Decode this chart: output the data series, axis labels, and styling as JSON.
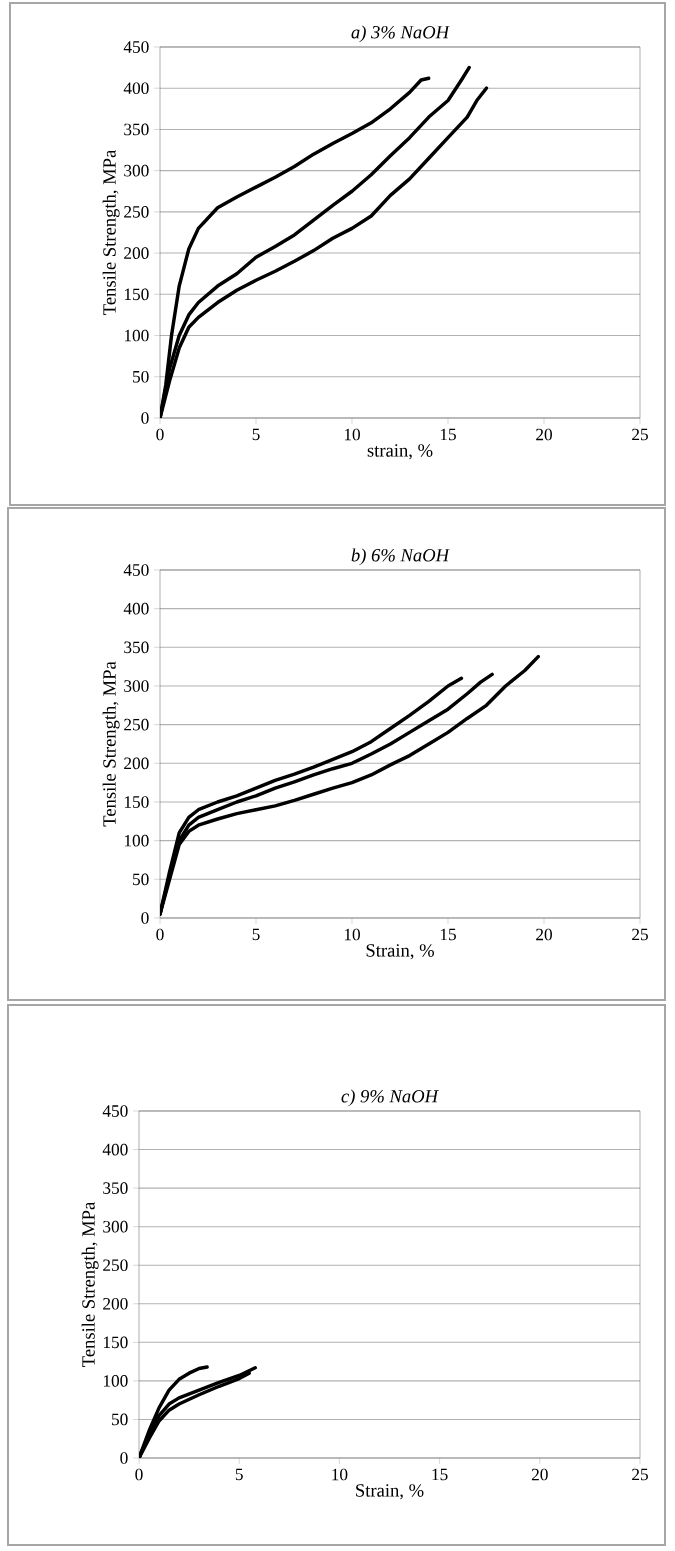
{
  "chart_data": [
    {
      "type": "line",
      "title": "a) 3% NaOH",
      "xlabel": "strain, %",
      "ylabel": "Tensile Strength, MPa",
      "xlim": [
        0,
        25
      ],
      "ylim": [
        0,
        450
      ],
      "xticks": [
        0,
        5,
        10,
        15,
        20,
        25
      ],
      "yticks": [
        0,
        50,
        100,
        150,
        200,
        250,
        300,
        350,
        400,
        450
      ],
      "grid": "y",
      "marker": "none",
      "line_style": "solid",
      "series": [
        {
          "color": "#000000",
          "x": [
            0,
            0.3,
            0.6,
            1,
            1.5,
            2,
            3,
            4,
            5,
            6,
            7,
            8,
            9,
            10,
            11,
            12,
            13,
            13.6,
            14
          ],
          "values": [
            0,
            40,
            100,
            160,
            205,
            230,
            255,
            268,
            280,
            292,
            305,
            320,
            333,
            345,
            358,
            375,
            395,
            410,
            412
          ]
        },
        {
          "color": "#000000",
          "x": [
            0,
            0.5,
            1,
            1.5,
            2,
            3,
            4,
            5,
            6,
            7,
            8,
            9,
            10,
            11,
            12,
            13,
            14,
            15,
            15.7,
            16.1
          ],
          "values": [
            0,
            60,
            100,
            125,
            140,
            160,
            175,
            195,
            208,
            222,
            240,
            258,
            275,
            295,
            318,
            340,
            365,
            385,
            410,
            425
          ]
        },
        {
          "color": "#000000",
          "x": [
            0,
            0.5,
            1,
            1.5,
            2,
            3,
            4,
            5,
            6,
            7,
            8,
            9,
            10,
            11,
            12,
            13,
            14,
            15,
            16,
            16.5,
            17
          ],
          "values": [
            0,
            45,
            85,
            110,
            122,
            140,
            155,
            167,
            178,
            190,
            203,
            218,
            230,
            245,
            270,
            290,
            315,
            340,
            365,
            385,
            400
          ]
        }
      ]
    },
    {
      "type": "line",
      "title": "b) 6% NaOH",
      "xlabel": "Strain, %",
      "ylabel": "Tensile Strength, MPa",
      "xlim": [
        0,
        25
      ],
      "ylim": [
        0,
        450
      ],
      "xticks": [
        0,
        5,
        10,
        15,
        20,
        25
      ],
      "yticks": [
        0,
        50,
        100,
        150,
        200,
        250,
        300,
        350,
        400,
        450
      ],
      "grid": "y",
      "marker": "none",
      "line_style": "solid",
      "series": [
        {
          "color": "#000000",
          "x": [
            0,
            0.5,
            1,
            1.5,
            2,
            3,
            4,
            5,
            6,
            7,
            8,
            9,
            10,
            11,
            12,
            13,
            14,
            15,
            15.7
          ],
          "values": [
            5,
            60,
            110,
            130,
            140,
            150,
            158,
            168,
            178,
            186,
            195,
            205,
            215,
            228,
            245,
            262,
            280,
            300,
            310
          ]
        },
        {
          "color": "#000000",
          "x": [
            0,
            0.5,
            1,
            1.5,
            2,
            3,
            4,
            5,
            6,
            7,
            8,
            9,
            10,
            11,
            12,
            13,
            14,
            15,
            16,
            16.7,
            17.3
          ],
          "values": [
            5,
            55,
            100,
            120,
            130,
            140,
            150,
            158,
            168,
            176,
            185,
            193,
            200,
            212,
            225,
            240,
            255,
            270,
            290,
            305,
            315
          ]
        },
        {
          "color": "#000000",
          "x": [
            0,
            0.5,
            1,
            1.5,
            2,
            3,
            4,
            5,
            6,
            7,
            8,
            9,
            10,
            11,
            12,
            13,
            14,
            15,
            16,
            17,
            18,
            19,
            19.7
          ],
          "values": [
            5,
            50,
            95,
            112,
            120,
            128,
            135,
            140,
            145,
            152,
            160,
            168,
            175,
            185,
            198,
            210,
            225,
            240,
            258,
            275,
            300,
            320,
            338
          ]
        }
      ]
    },
    {
      "type": "line",
      "title": "c)  9% NaOH",
      "xlabel": "Strain, %",
      "ylabel": "Tensile Strength, MPa",
      "xlim": [
        0,
        25
      ],
      "ylim": [
        0,
        450
      ],
      "xticks": [
        0,
        5,
        10,
        15,
        20,
        25
      ],
      "yticks": [
        0,
        50,
        100,
        150,
        200,
        250,
        300,
        350,
        400,
        450
      ],
      "grid": "y",
      "marker": "none",
      "line_style": "solid",
      "series": [
        {
          "color": "#000000",
          "x": [
            0,
            0.5,
            1,
            1.5,
            2,
            2.5,
            3,
            3.4
          ],
          "values": [
            0,
            35,
            65,
            88,
            102,
            110,
            116,
            118
          ]
        },
        {
          "color": "#000000",
          "x": [
            0,
            0.5,
            1,
            1.5,
            2,
            3,
            4,
            5,
            5.8
          ],
          "values": [
            0,
            30,
            55,
            70,
            78,
            88,
            98,
            107,
            117
          ]
        },
        {
          "color": "#000000",
          "x": [
            0,
            0.5,
            1,
            1.5,
            2,
            3,
            4,
            5,
            5.5
          ],
          "values": [
            0,
            25,
            48,
            62,
            70,
            82,
            93,
            103,
            110
          ]
        }
      ]
    }
  ]
}
